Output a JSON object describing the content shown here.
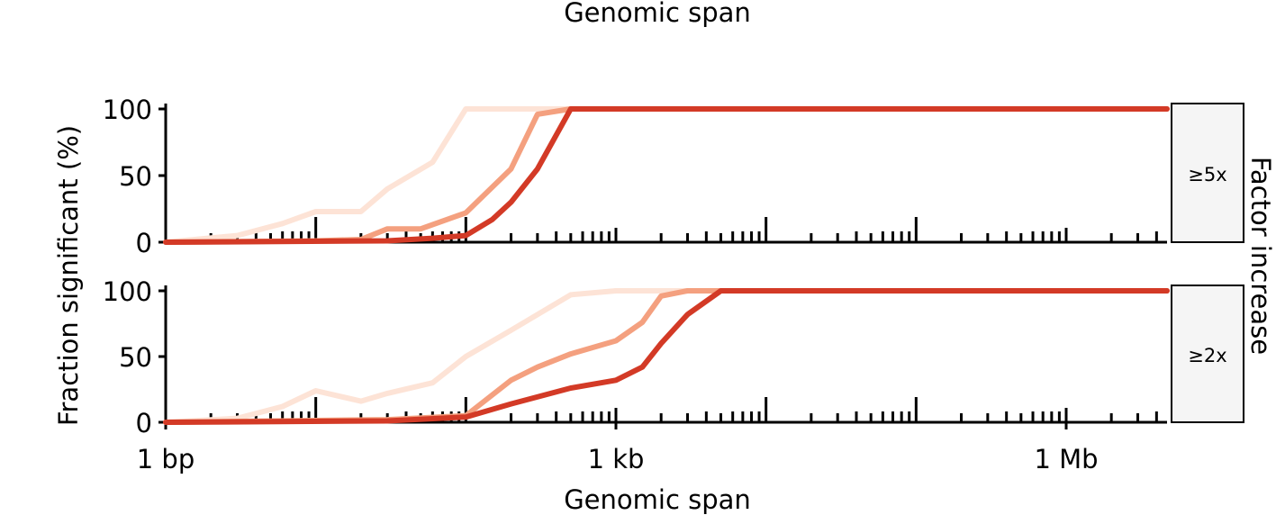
{
  "top_label": "Genomic span",
  "chart_data": {
    "type": "line",
    "xlabel": "Genomic span",
    "ylabel": "Fraction significant (%)",
    "facet_label": "Factor increase",
    "x_scale": "log10",
    "xlim_bp": [
      1,
      50000000
    ],
    "ylim": [
      0,
      100
    ],
    "yticks": [
      0,
      50,
      100
    ],
    "xticks": [
      {
        "value": 1,
        "label": "1 bp"
      },
      {
        "value": 1000,
        "label": "1 kb"
      },
      {
        "value": 1000000,
        "label": "1 Mb"
      }
    ],
    "series_colors": [
      "#fde3d6",
      "#f4a07f",
      "#d33a26"
    ],
    "panels": [
      {
        "label": "≥5x",
        "series": [
          {
            "color": "#fde3d6",
            "x": [
              1,
              3,
              6,
              10,
              20,
              30,
              60,
              100,
              200,
              400,
              1000,
              50000000
            ],
            "y": [
              0,
              5,
              14,
              23,
              23,
              40,
              60,
              100,
              100,
              100,
              100,
              100
            ]
          },
          {
            "color": "#f4a07f",
            "x": [
              1,
              10,
              20,
              30,
              50,
              100,
              200,
              300,
              500,
              1000,
              50000000
            ],
            "y": [
              0,
              1,
              2,
              10,
              10,
              22,
              55,
              96,
              100,
              100,
              100
            ]
          },
          {
            "color": "#d33a26",
            "x": [
              1,
              30,
              60,
              100,
              150,
              200,
              300,
              500,
              1000,
              50000000
            ],
            "y": [
              0,
              1,
              3,
              5,
              17,
              30,
              55,
              100,
              100,
              100
            ]
          }
        ]
      },
      {
        "label": "≥2x",
        "series": [
          {
            "color": "#fde3d6",
            "x": [
              1,
              3,
              6,
              10,
              20,
              30,
              60,
              100,
              200,
              500,
              1000,
              50000000
            ],
            "y": [
              0,
              3,
              12,
              24,
              16,
              22,
              30,
              50,
              70,
              97,
              100,
              100
            ]
          },
          {
            "color": "#f4a07f",
            "x": [
              1,
              30,
              100,
              200,
              300,
              500,
              1000,
              1500,
              2000,
              3000,
              50000000
            ],
            "y": [
              0,
              2,
              5,
              32,
              42,
              52,
              62,
              76,
              96,
              100,
              100
            ]
          },
          {
            "color": "#d33a26",
            "x": [
              1,
              30,
              100,
              200,
              500,
              1000,
              1500,
              2000,
              3000,
              5000,
              50000000
            ],
            "y": [
              0,
              1,
              4,
              14,
              26,
              32,
              42,
              60,
              82,
              100,
              100
            ]
          }
        ]
      }
    ]
  }
}
